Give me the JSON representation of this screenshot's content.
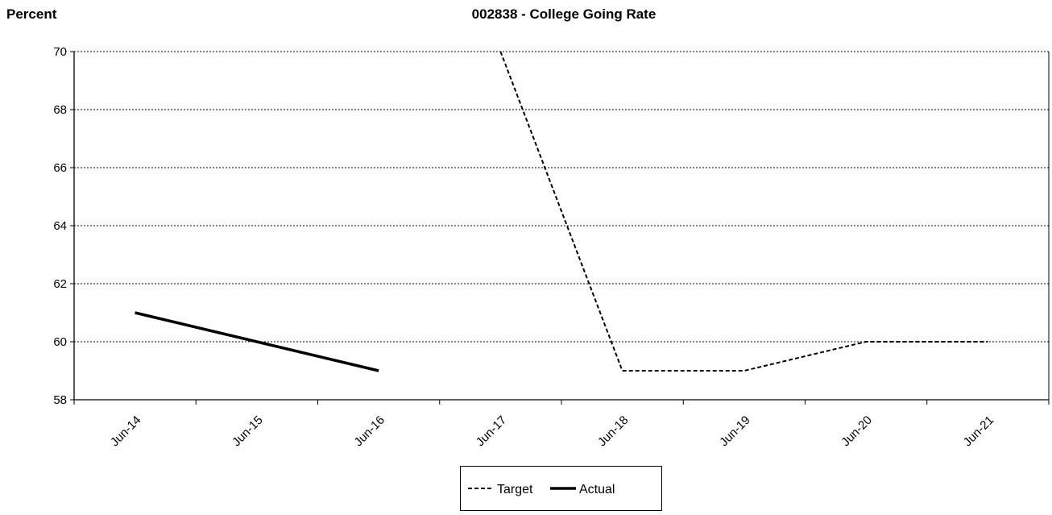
{
  "chart_data": {
    "type": "line",
    "title": "002838 - College Going Rate",
    "ylabel": "Percent",
    "xlabel": "",
    "categories": [
      "Jun-14",
      "Jun-15",
      "Jun-16",
      "Jun-17",
      "Jun-18",
      "Jun-19",
      "Jun-20",
      "Jun-21"
    ],
    "ylim": [
      58,
      70
    ],
    "yticks": [
      58,
      60,
      62,
      64,
      66,
      68,
      70
    ],
    "grid": true,
    "legend_position": "bottom",
    "series": [
      {
        "name": "Target",
        "style": "dashed",
        "color": "#000000",
        "values": [
          null,
          null,
          null,
          70,
          59,
          59,
          60,
          60
        ]
      },
      {
        "name": "Actual",
        "style": "solid",
        "color": "#000000",
        "values": [
          61,
          60,
          59,
          null,
          null,
          null,
          null,
          null
        ]
      }
    ]
  }
}
